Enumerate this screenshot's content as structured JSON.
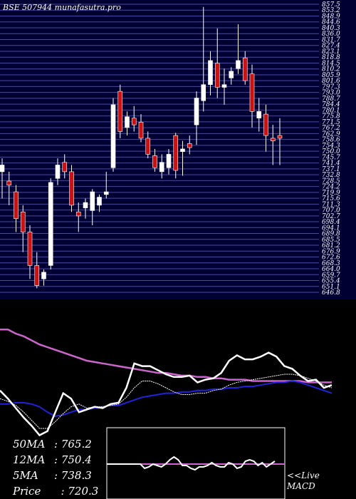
{
  "header": {
    "symbol": "BSE 507944",
    "site": "munafasutra.pro"
  },
  "colors": {
    "background_top": "#000033",
    "grid": "#4a4aa0",
    "candle_up": "#ffffff",
    "candle_down": "#cc1111",
    "ma50": "#cc66cc",
    "ma12": "#2222dd",
    "ma5": "#ffffff",
    "price": "#ffffff",
    "macd_box": "#ffffff",
    "macd_line": "#cc66cc"
  },
  "stats": {
    "ma50_label": "50MA",
    "ma50_value": ": 765.2",
    "ma12_label": "12MA",
    "ma12_value": ": 750.4",
    "ma5_label": "5MA",
    "ma5_value": ": 738.3",
    "price_label": "Price",
    "price_value": "  : 720.3"
  },
  "macd_label": {
    "line1": "<<Live",
    "line2": "MACD"
  },
  "chart_data": [
    {
      "type": "candlestick",
      "title": "BSE 507944 munafasutra.pro",
      "y_ticks": [
        "857.5",
        "853.2",
        "848.9",
        "844.6",
        "840.3",
        "836.0",
        "831.7",
        "827.4",
        "823.1",
        "818.8",
        "814.5",
        "810.2",
        "805.9",
        "801.6",
        "797.3",
        "793.0",
        "788.7",
        "784.4",
        "780.1",
        "775.8",
        "771.5",
        "767.2",
        "762.9",
        "758.6",
        "754.3",
        "750.0",
        "745.7",
        "741.4",
        "737.1",
        "732.8",
        "728.5",
        "724.2",
        "719.9",
        "715.6",
        "711.3",
        "707.0",
        "702.7",
        "698.4",
        "694.1",
        "689.8",
        "685.5",
        "681.2",
        "676.9",
        "672.6",
        "668.3",
        "664.0",
        "659.7",
        "655.4",
        "651.1",
        "646.8"
      ],
      "ylim": [
        645,
        860
      ],
      "candles": [
        {
          "o": 735,
          "h": 745,
          "l": 715,
          "c": 740
        },
        {
          "o": 728,
          "h": 735,
          "l": 710,
          "c": 725
        },
        {
          "o": 720,
          "h": 725,
          "l": 690,
          "c": 700
        },
        {
          "o": 705,
          "h": 710,
          "l": 675,
          "c": 690
        },
        {
          "o": 690,
          "h": 695,
          "l": 655,
          "c": 665
        },
        {
          "o": 665,
          "h": 675,
          "l": 648,
          "c": 650
        },
        {
          "o": 655,
          "h": 662,
          "l": 650,
          "c": 660
        },
        {
          "o": 665,
          "h": 730,
          "l": 662,
          "c": 727
        },
        {
          "o": 730,
          "h": 745,
          "l": 725,
          "c": 740
        },
        {
          "o": 742,
          "h": 748,
          "l": 730,
          "c": 735
        },
        {
          "o": 735,
          "h": 740,
          "l": 705,
          "c": 710
        },
        {
          "o": 705,
          "h": 712,
          "l": 690,
          "c": 702
        },
        {
          "o": 708,
          "h": 715,
          "l": 700,
          "c": 712
        },
        {
          "o": 706,
          "h": 722,
          "l": 695,
          "c": 720
        },
        {
          "o": 710,
          "h": 718,
          "l": 705,
          "c": 716
        },
        {
          "o": 718,
          "h": 735,
          "l": 715,
          "c": 720
        },
        {
          "o": 738,
          "h": 790,
          "l": 735,
          "c": 785
        },
        {
          "o": 795,
          "h": 800,
          "l": 760,
          "c": 765
        },
        {
          "o": 768,
          "h": 780,
          "l": 762,
          "c": 776
        },
        {
          "o": 775,
          "h": 784,
          "l": 765,
          "c": 770
        },
        {
          "o": 772,
          "h": 778,
          "l": 757,
          "c": 760
        },
        {
          "o": 760,
          "h": 765,
          "l": 745,
          "c": 748
        },
        {
          "o": 747,
          "h": 752,
          "l": 735,
          "c": 738
        },
        {
          "o": 735,
          "h": 748,
          "l": 730,
          "c": 742
        },
        {
          "o": 738,
          "h": 752,
          "l": 733,
          "c": 748
        },
        {
          "o": 762,
          "h": 764,
          "l": 730,
          "c": 736
        },
        {
          "o": 750,
          "h": 758,
          "l": 732,
          "c": 752
        },
        {
          "o": 756,
          "h": 762,
          "l": 748,
          "c": 753
        },
        {
          "o": 770,
          "h": 795,
          "l": 755,
          "c": 790
        },
        {
          "o": 788,
          "h": 858,
          "l": 780,
          "c": 800
        },
        {
          "o": 800,
          "h": 825,
          "l": 792,
          "c": 818
        },
        {
          "o": 816,
          "h": 842,
          "l": 790,
          "c": 798
        },
        {
          "o": 798,
          "h": 812,
          "l": 785,
          "c": 800
        },
        {
          "o": 805,
          "h": 813,
          "l": 800,
          "c": 810
        },
        {
          "o": 812,
          "h": 845,
          "l": 808,
          "c": 818
        },
        {
          "o": 820,
          "h": 825,
          "l": 800,
          "c": 803
        },
        {
          "o": 808,
          "h": 815,
          "l": 768,
          "c": 780
        },
        {
          "o": 775,
          "h": 790,
          "l": 765,
          "c": 780
        },
        {
          "o": 778,
          "h": 785,
          "l": 750,
          "c": 762
        },
        {
          "o": 760,
          "h": 770,
          "l": 740,
          "c": 758
        },
        {
          "o": 762,
          "h": 775,
          "l": 740,
          "c": 760
        }
      ]
    },
    {
      "type": "line",
      "series": [
        {
          "name": "50MA",
          "values": [
            83,
            83,
            80,
            78,
            75,
            72,
            70,
            68,
            66,
            64,
            62,
            60,
            59,
            58,
            57,
            56,
            55,
            54,
            53,
            52,
            51,
            51,
            50,
            49,
            49,
            48,
            48,
            47,
            47,
            46,
            46,
            46,
            45,
            45,
            45,
            45,
            45,
            45,
            45,
            44,
            44,
            44,
            44
          ]
        },
        {
          "name": "12MA",
          "values": [
            28,
            28,
            29,
            29,
            28,
            26,
            22,
            19,
            20,
            22,
            24,
            24,
            25,
            26,
            27,
            27,
            29,
            31,
            33,
            34,
            35,
            36,
            36,
            37,
            37,
            38,
            38,
            39,
            39,
            40,
            40,
            41,
            41,
            42,
            43,
            44,
            44,
            45,
            44,
            42,
            40,
            38,
            36
          ]
        },
        {
          "name": "5MA",
          "values": [
            32,
            30,
            27,
            22,
            16,
            10,
            10,
            15,
            21,
            26,
            28,
            25,
            26,
            26,
            27,
            28,
            33,
            40,
            45,
            45,
            43,
            40,
            37,
            35,
            35,
            36,
            36,
            38,
            39,
            42,
            44,
            45,
            46,
            47,
            48,
            49,
            50,
            50,
            49,
            47,
            45,
            42,
            40
          ]
        },
        {
          "name": "Price",
          "values": [
            38,
            32,
            25,
            18,
            12,
            5,
            8,
            22,
            36,
            32,
            22,
            24,
            26,
            25,
            28,
            29,
            40,
            58,
            56,
            56,
            53,
            50,
            48,
            48,
            49,
            44,
            46,
            47,
            51,
            60,
            64,
            61,
            61,
            63,
            66,
            63,
            56,
            54,
            49,
            45,
            46,
            40,
            42
          ]
        }
      ],
      "ylim": [
        0,
        100
      ]
    },
    {
      "type": "line",
      "title": "MACD",
      "series": [
        {
          "name": "MACD",
          "values": [
            0,
            0,
            0,
            0,
            0,
            0,
            0,
            0,
            0,
            -3,
            -2,
            0,
            -1,
            -2,
            0,
            3,
            5,
            3,
            -1,
            -1,
            -3,
            -4,
            -2,
            -2,
            -1,
            1,
            -1,
            -2,
            -2,
            1,
            0,
            -3,
            -2,
            2,
            3,
            2,
            -1,
            1,
            -2,
            0,
            2
          ]
        }
      ],
      "ylim": [
        -10,
        10
      ]
    }
  ]
}
